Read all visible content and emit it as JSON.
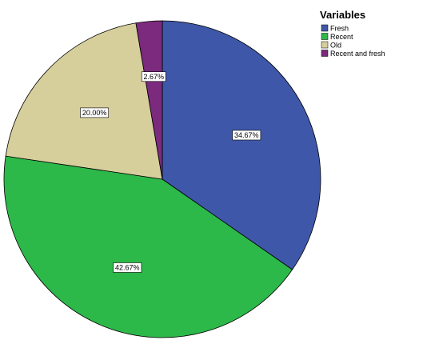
{
  "chart_data": {
    "type": "pie",
    "legend_title": "Variables",
    "legend_position": "top-right",
    "start_angle": "12 o'clock, clockwise",
    "slices": [
      {
        "name": "Fresh",
        "value": 34.67,
        "label": "34.67%",
        "color": "#3f57a8"
      },
      {
        "name": "Recent",
        "value": 42.67,
        "label": "42.67%",
        "color": "#2db84a"
      },
      {
        "name": "Old",
        "value": 20.0,
        "label": "20.00%",
        "color": "#d6cf9c"
      },
      {
        "name": "Recent and fresh",
        "value": 2.67,
        "label": "2.67%",
        "color": "#7b2a7d"
      }
    ]
  }
}
